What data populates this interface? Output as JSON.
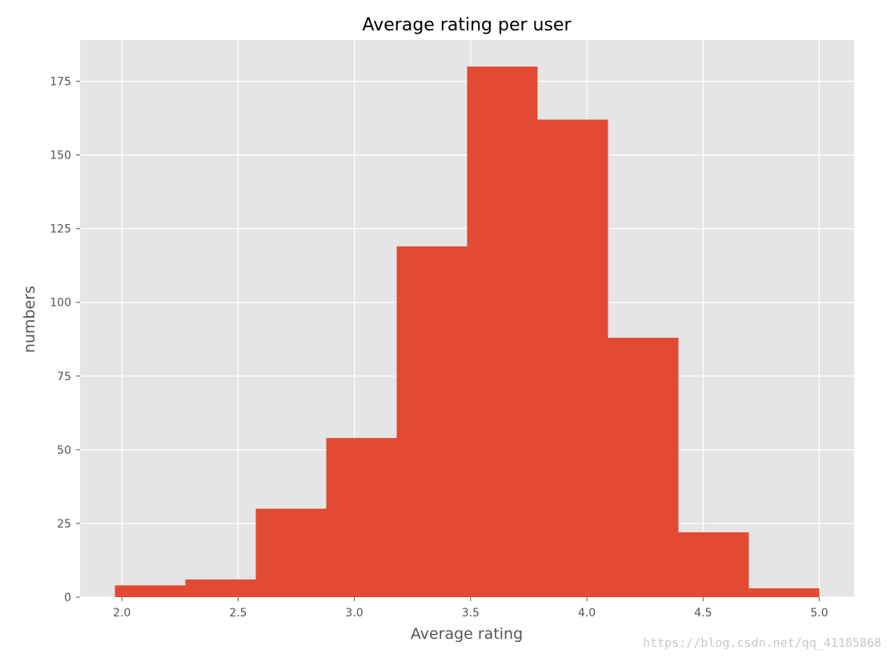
{
  "chart_data": {
    "type": "bar",
    "title": "Average rating per user",
    "xlabel": "Average rating",
    "ylabel": "numbers",
    "bins": [
      {
        "x0": 1.97,
        "x1": 2.273,
        "count": 4
      },
      {
        "x0": 2.273,
        "x1": 2.576,
        "count": 6
      },
      {
        "x0": 2.576,
        "x1": 2.879,
        "count": 30
      },
      {
        "x0": 2.879,
        "x1": 3.182,
        "count": 54
      },
      {
        "x0": 3.182,
        "x1": 3.485,
        "count": 119
      },
      {
        "x0": 3.485,
        "x1": 3.788,
        "count": 180
      },
      {
        "x0": 3.788,
        "x1": 4.091,
        "count": 162
      },
      {
        "x0": 4.091,
        "x1": 4.394,
        "count": 88
      },
      {
        "x0": 4.394,
        "x1": 4.697,
        "count": 22
      },
      {
        "x0": 4.697,
        "x1": 5.0,
        "count": 3
      }
    ],
    "xlim": [
      1.82,
      5.15
    ],
    "ylim": [
      0,
      189
    ],
    "xticks": [
      "2.0",
      "2.5",
      "3.0",
      "3.5",
      "4.0",
      "4.5",
      "5.0"
    ],
    "yticks": [
      "0",
      "25",
      "50",
      "75",
      "100",
      "125",
      "150",
      "175"
    ],
    "grid": true,
    "colors": {
      "bar": "#E24A33",
      "background": "#E5E5E5",
      "grid": "#FFFFFF",
      "text": "#555555"
    }
  },
  "watermark": "https://blog.csdn.net/qq_41185868"
}
